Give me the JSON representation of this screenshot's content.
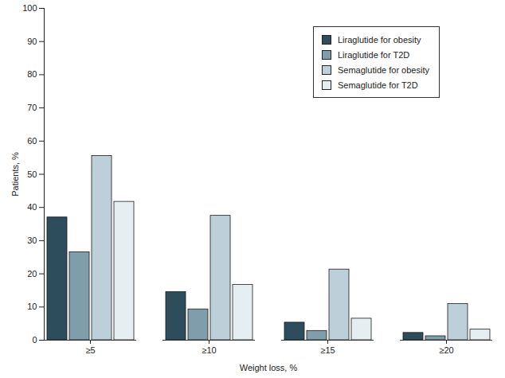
{
  "chart_data": {
    "type": "bar",
    "x_label": "Weight loss, %",
    "y_label": "Patients, %",
    "categories": [
      "≥5",
      "≥10",
      "≥15",
      "≥20"
    ],
    "series": [
      {
        "name": "Liraglutide for obesity",
        "color": "#2e4d5c",
        "values": [
          37,
          14.5,
          5.3,
          2.2
        ]
      },
      {
        "name": "Liraglutide for T2D",
        "color": "#7f9dab",
        "values": [
          26.5,
          9.3,
          2.8,
          1.2
        ]
      },
      {
        "name": "Semaglutide for obesity",
        "color": "#bdcfd8",
        "values": [
          55.5,
          37.5,
          21.3,
          10.9
        ]
      },
      {
        "name": "Semaglutide for T2D",
        "color": "#e6eef1",
        "values": [
          41.7,
          16.7,
          6.5,
          3.2
        ]
      }
    ],
    "ylim": [
      0,
      100
    ],
    "yticks": [
      0,
      10,
      20,
      30,
      40,
      50,
      60,
      70,
      80,
      90,
      100
    ],
    "grid": false,
    "legend": "top-right"
  }
}
